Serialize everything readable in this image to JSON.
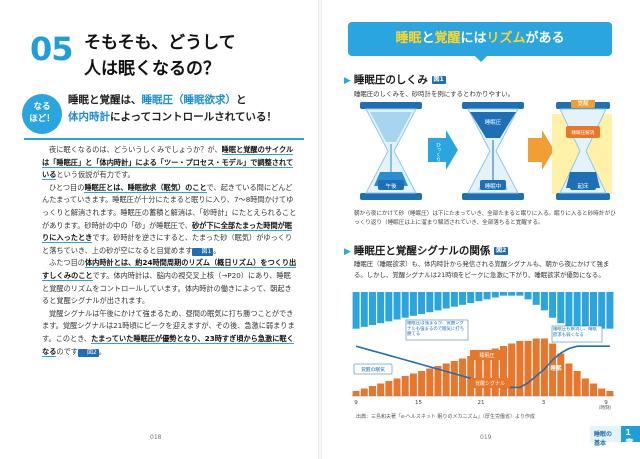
{
  "left": {
    "chapter_num": "05",
    "title_line1": "そもそも、どうして",
    "title_line2": "人は眠くなるの？",
    "badge_line1": "なる",
    "badge_line2": "ほど！",
    "lead_a": "睡眠と覚醒は、",
    "lead_b": "睡眠圧（睡眠欲求）",
    "lead_c": "と",
    "lead_d": "体内時計",
    "lead_e": "によってコントロールされている！",
    "p1_a": "夜に眠くなるのは、どういうしくみでしょうか？",
    "p1_b": "が、",
    "p1_c": "睡眠と覚醒のサイクルは「睡眠圧」と「体内時計」による「ツー・プロセス・モデル」で調整されている",
    "p1_d": "という仮説が有力です。",
    "p2_a": "ひとつ目の",
    "p2_b": "睡眠圧とは、睡眠欲求（眠気）のこと",
    "p2_c": "で、起きている間にどんどんたまっていきます。睡眠圧が十分にたまると眠りに入り、7～8時間かけてゆっくりと解消されます。睡眠圧の蓄積と解消は、「砂時計」にたとえられることがあります。砂時計の中の「砂」が睡眠圧で、",
    "p2_d": "砂が下に全部たまった時間が眠りに入ったとき",
    "p2_e": "です。砂時計を逆さにすると、たまった砂（眠気）がゆっくりと落ちていき、上の砂が空になると目覚めます",
    "p2_fig": "図1",
    "p2_f": "。",
    "p3_a": "ふたつ目の",
    "p3_b": "体内時計とは、約24時間周期のリズム（概日リズム）をつくり出すしくみのこと",
    "p3_c": "です。体内時計は、脳内の視交叉上核（→P20）にあり、睡眠と覚醒のリズムをコントロールしています。体内時計の働きによって、朝起きると覚醒シグナルが出されます。",
    "p4_a": "覚醒シグナルは午後にかけて強まるため、昼間の眠気に打ち勝つことができます。覚醒シグナルは21時頃にピークを迎えますが、その後、急激に弱まります。このとき、",
    "p4_b": "たまっていた睡眠圧が優勢となり、23時すぎ頃から急激に眠くなる",
    "p4_c": "のです",
    "p4_fig": "図2",
    "p4_d": "。",
    "page_num": "018"
  },
  "right": {
    "banner_a": "睡眠",
    "banner_b": "と",
    "banner_c": "覚醒",
    "banner_d": "には",
    "banner_e": "リズム",
    "banner_f": "がある",
    "sec1_title": "睡眠圧のしくみ",
    "sec1_fig": "図1",
    "sec1_desc": "睡眠圧のしくみを、砂時計を例にするとわかりやすい。",
    "hg_labels": [
      "午後",
      "睡眠中",
      "起床"
    ],
    "hg_arrow": "ひっくり返す",
    "hg_mid_label": "睡眠圧",
    "hg_right_top": "覚醒",
    "hg_right_mid": "睡眠圧解消",
    "caption1": "朝から夜にかけて砂（睡眠圧）は下にたまっていき、全部たまると眠りに入る。眠りに入ると砂時計がひっくり返り（睡眠圧は上に溜まり解消されていき、全部落ちると覚醒する。",
    "sec2_title": "睡眠圧と覚醒シグナルの関係",
    "sec2_fig": "図2",
    "sec2_desc": "睡眠圧（睡眠欲求）も、体内時計から発信される覚醒シグナルも、朝から夜にかけて強まる。しかし、覚醒シグナルは21時頃をピークに急激に下がり、睡眠欲求が優勢になる。",
    "source": "出典：三島和夫著「e-ヘルスネット 眠りのメカニズム」（厚生労働省）より作成",
    "page_num": "019",
    "tab_label": "睡眠の基本",
    "tab_num": "1章"
  },
  "chart_data": {
    "type": "bar",
    "title": "",
    "x_ticks": [
      "9",
      "15",
      "21",
      "3",
      "9"
    ],
    "x_unit": "（時刻）",
    "series": [
      {
        "name": "睡眠圧",
        "type": "bar",
        "color": "#e8762b",
        "values": [
          2,
          3,
          4,
          5,
          6,
          7,
          8,
          9,
          10,
          11,
          12,
          13,
          14,
          15,
          16,
          17,
          18,
          19,
          20,
          21,
          22,
          22,
          23,
          23,
          21,
          17,
          13,
          10,
          7,
          5,
          3,
          2
        ]
      },
      {
        "name": "覚醒シグナル",
        "type": "bar",
        "color": "#2aa5e0",
        "values": [
          20,
          19,
          18,
          17,
          16,
          15,
          14,
          13,
          12,
          11,
          10,
          9,
          8,
          7,
          6,
          5,
          4,
          3,
          2,
          2,
          2,
          4,
          7,
          10,
          14,
          17,
          19,
          20,
          20,
          20,
          20,
          20
        ]
      }
    ],
    "labels": {
      "wake_drowsy": "覚醒の眠気",
      "sleep_pressure": "睡眠圧",
      "wake_signal": "覚醒シグナル",
      "sleep": "睡眠",
      "note_left": "睡眠圧は強まるが、覚醒シグナルも強まるので眠気に打ち勝てる",
      "note_right": "睡眠圧も解消し、睡眠欲求も弱くなる"
    },
    "colors": {
      "orange": "#e8762b",
      "blue": "#2aa5e0",
      "curve": "#1e6fb5"
    }
  }
}
